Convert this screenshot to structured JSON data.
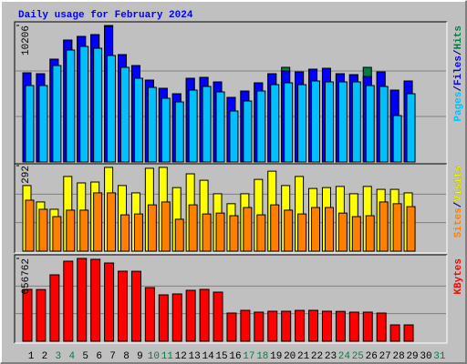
{
  "title": "Daily usage for February 2024",
  "title_color": "#0000ff",
  "legend_separator": "/",
  "chart_data": [
    {
      "type": "bar",
      "ylim": [
        0,
        10206
      ],
      "yticks": [
        10206
      ],
      "series": [
        {
          "name": "Hits",
          "color": "#008040",
          "values": [
            6668,
            6600,
            7689,
            9117,
            9390,
            9525,
            10206,
            8029,
            7212,
            6124,
            5511,
            5103,
            6260,
            6328,
            5987,
            4831,
            5307,
            5919,
            6600,
            7076,
            6736,
            6940,
            7008,
            6600,
            6532,
            7076,
            6736,
            5375,
            6056,
            null,
            null
          ]
        },
        {
          "name": "Files",
          "color": "#0000ff",
          "values": [
            6668,
            6600,
            7689,
            9117,
            9390,
            9525,
            10138,
            8029,
            7212,
            6124,
            5511,
            5103,
            6260,
            6328,
            5987,
            4831,
            5307,
            5919,
            6600,
            6804,
            6736,
            6940,
            7008,
            6600,
            6532,
            6396,
            6736,
            5375,
            6056,
            null,
            null
          ]
        },
        {
          "name": "Pages",
          "color": "#00c0ff",
          "values": [
            5715,
            5715,
            7212,
            8369,
            8641,
            8505,
            7961,
            7076,
            6260,
            5579,
            4763,
            4491,
            5375,
            5647,
            5239,
            3810,
            4559,
            5307,
            5783,
            5919,
            5783,
            6056,
            5987,
            5987,
            5987,
            5715,
            5647,
            3470,
            5103,
            null,
            null
          ]
        }
      ]
    },
    {
      "type": "bar",
      "ylim": [
        0,
        292
      ],
      "yticks": [
        292
      ],
      "series": [
        {
          "name": "Visits",
          "color": "#ffff00",
          "values": [
            224,
            168,
            143,
            255,
            233,
            236,
            286,
            224,
            199,
            283,
            286,
            217,
            264,
            242,
            196,
            162,
            196,
            245,
            273,
            224,
            255,
            214,
            217,
            221,
            196,
            221,
            211,
            211,
            199,
            null,
            null
          ]
        },
        {
          "name": "Sites",
          "color": "#ff8000",
          "values": [
            174,
            143,
            118,
            140,
            140,
            199,
            199,
            124,
            127,
            158,
            168,
            109,
            158,
            127,
            130,
            121,
            149,
            124,
            158,
            140,
            127,
            149,
            149,
            130,
            118,
            121,
            168,
            162,
            152,
            null,
            null
          ]
        }
      ]
    },
    {
      "type": "bar",
      "ylim": [
        0,
        656762
      ],
      "yticks": [
        656762
      ],
      "categories": [
        "1",
        "2",
        "3",
        "4",
        "5",
        "6",
        "7",
        "8",
        "9",
        "10",
        "11",
        "12",
        "13",
        "14",
        "15",
        "16",
        "17",
        "18",
        "19",
        "20",
        "21",
        "22",
        "23",
        "24",
        "25",
        "26",
        "27",
        "28",
        "29",
        "30",
        "31"
      ],
      "category_colors": [
        "#000000",
        "#000000",
        "#008040",
        "#008040",
        "#000000",
        "#000000",
        "#000000",
        "#000000",
        "#000000",
        "#008040",
        "#008040",
        "#000000",
        "#000000",
        "#000000",
        "#000000",
        "#000000",
        "#008040",
        "#008040",
        "#000000",
        "#000000",
        "#000000",
        "#000000",
        "#000000",
        "#008040",
        "#008040",
        "#000000",
        "#000000",
        "#000000",
        "#000000",
        "#000000",
        "#008040"
      ],
      "series": [
        {
          "name": "KBytes",
          "color": "#ff0000",
          "values": [
            411389,
            410000,
            526845,
            635111,
            656762,
            650000,
            620674,
            555722,
            555000,
            425824,
            368076,
            375293,
            404162,
            411389,
            389725,
            223730,
            245381,
            230947,
            238164,
            238000,
            245000,
            245381,
            238164,
            237000,
            230947,
            231000,
            223730,
            129910,
            129910,
            null,
            null
          ]
        }
      ]
    }
  ]
}
